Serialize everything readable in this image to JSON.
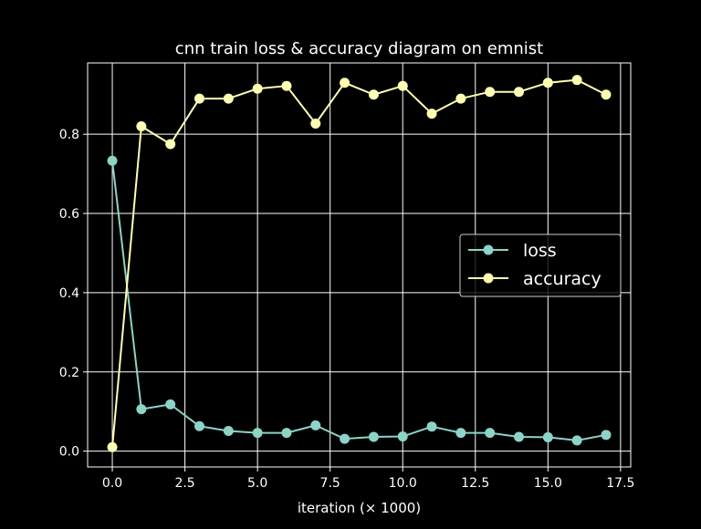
{
  "chart_data": {
    "type": "line",
    "title": "cnn train loss & accuracy diagram on emnist",
    "xlabel": "iteration (× 1000)",
    "ylabel": "",
    "xlim": [
      -0.85,
      17.85
    ],
    "ylim": [
      -0.04,
      0.98
    ],
    "grid": true,
    "legend_position": "center-right",
    "x_ticks": [
      0.0,
      2.5,
      5.0,
      7.5,
      10.0,
      12.5,
      15.0,
      17.5
    ],
    "x_tick_labels": [
      "0.0",
      "2.5",
      "5.0",
      "7.5",
      "10.0",
      "12.5",
      "15.0",
      "17.5"
    ],
    "y_ticks": [
      0.0,
      0.2,
      0.4,
      0.6,
      0.8
    ],
    "y_tick_labels": [
      "0.0",
      "0.2",
      "0.4",
      "0.6",
      "0.8"
    ],
    "x": [
      0,
      1,
      2,
      3,
      4,
      5,
      6,
      7,
      8,
      9,
      10,
      11,
      12,
      13,
      14,
      15,
      16,
      17
    ],
    "series": [
      {
        "name": "loss",
        "color": "#8dd3c7",
        "values": [
          0.733,
          0.106,
          0.118,
          0.063,
          0.051,
          0.046,
          0.046,
          0.065,
          0.031,
          0.036,
          0.037,
          0.062,
          0.046,
          0.046,
          0.036,
          0.035,
          0.027,
          0.041
        ]
      },
      {
        "name": "accuracy",
        "color": "#ffffb3",
        "values": [
          0.01,
          0.82,
          0.775,
          0.89,
          0.89,
          0.915,
          0.922,
          0.827,
          0.93,
          0.9,
          0.922,
          0.852,
          0.89,
          0.907,
          0.907,
          0.93,
          0.937,
          0.9
        ]
      }
    ]
  }
}
